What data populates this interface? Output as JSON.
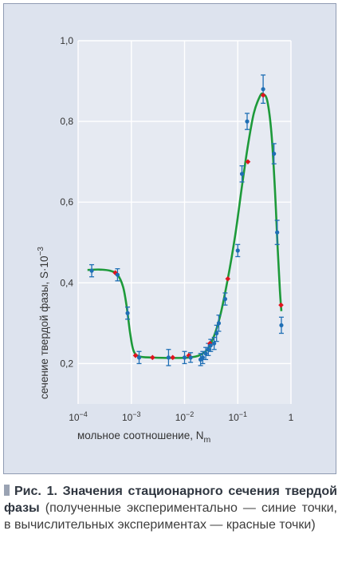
{
  "chart_data": {
    "type": "scatter",
    "xscale": "log",
    "xlim": [
      0.0001,
      1
    ],
    "ylim": [
      0.1,
      1.0
    ],
    "x_ticks": [
      {
        "value": 0.0001,
        "base": "10",
        "exp": "−4"
      },
      {
        "value": 0.001,
        "base": "10",
        "exp": "−3"
      },
      {
        "value": 0.01,
        "base": "10",
        "exp": "−2"
      },
      {
        "value": 0.1,
        "base": "10",
        "exp": "−1"
      },
      {
        "value": 1,
        "base": "1",
        "exp": ""
      }
    ],
    "y_ticks": [
      {
        "value": 0.2,
        "label": "0,2"
      },
      {
        "value": 0.4,
        "label": "0,4"
      },
      {
        "value": 0.6,
        "label": "0,6"
      },
      {
        "value": 0.8,
        "label": "0,8"
      },
      {
        "value": 1.0,
        "label": "1,0"
      }
    ],
    "xlabel": {
      "main": "мольное соотношение, N",
      "sub": "m"
    },
    "ylabel": {
      "main": "сечение твердой фазы, S·10",
      "sup": "−3"
    },
    "grid": true,
    "colors": {
      "experiment": "#1f6fb5",
      "computed": "#e0141e",
      "curve": "#1d9a3a",
      "grid": "#ffffff",
      "plot_bg": "#e6eaf2"
    },
    "series": [
      {
        "key": "experiment",
        "values": [
          {
            "x": 0.00018,
            "y": 0.43,
            "err": 0.015
          },
          {
            "x": 0.00055,
            "y": 0.42,
            "err": 0.015
          },
          {
            "x": 0.00085,
            "y": 0.325,
            "err": 0.015
          },
          {
            "x": 0.0014,
            "y": 0.215,
            "err": 0.015
          },
          {
            "x": 0.005,
            "y": 0.215,
            "err": 0.02
          },
          {
            "x": 0.01,
            "y": 0.215,
            "err": 0.015
          },
          {
            "x": 0.013,
            "y": 0.215,
            "err": 0.012
          },
          {
            "x": 0.02,
            "y": 0.21,
            "err": 0.015
          },
          {
            "x": 0.022,
            "y": 0.215,
            "err": 0.015
          },
          {
            "x": 0.025,
            "y": 0.225,
            "err": 0.015
          },
          {
            "x": 0.028,
            "y": 0.235,
            "err": 0.015
          },
          {
            "x": 0.031,
            "y": 0.245,
            "err": 0.015
          },
          {
            "x": 0.036,
            "y": 0.25,
            "err": 0.015
          },
          {
            "x": 0.04,
            "y": 0.275,
            "err": 0.02
          },
          {
            "x": 0.044,
            "y": 0.3,
            "err": 0.02
          },
          {
            "x": 0.058,
            "y": 0.36,
            "err": 0.015
          },
          {
            "x": 0.1,
            "y": 0.48,
            "err": 0.015
          },
          {
            "x": 0.12,
            "y": 0.67,
            "err": 0.02
          },
          {
            "x": 0.15,
            "y": 0.8,
            "err": 0.02
          },
          {
            "x": 0.3,
            "y": 0.88,
            "err": 0.035
          },
          {
            "x": 0.48,
            "y": 0.72,
            "err": 0.025
          },
          {
            "x": 0.55,
            "y": 0.525,
            "err": 0.03
          },
          {
            "x": 0.66,
            "y": 0.295,
            "err": 0.02
          }
        ]
      },
      {
        "key": "computed",
        "values": [
          {
            "x": 0.0005,
            "y": 0.425
          },
          {
            "x": 0.0012,
            "y": 0.22
          },
          {
            "x": 0.0025,
            "y": 0.215
          },
          {
            "x": 0.006,
            "y": 0.215
          },
          {
            "x": 0.012,
            "y": 0.22
          },
          {
            "x": 0.03,
            "y": 0.25
          },
          {
            "x": 0.065,
            "y": 0.41
          },
          {
            "x": 0.155,
            "y": 0.7
          },
          {
            "x": 0.3,
            "y": 0.865
          },
          {
            "x": 0.65,
            "y": 0.345
          }
        ]
      },
      {
        "key": "curve",
        "values": [
          {
            "x": 0.00015,
            "y": 0.432
          },
          {
            "x": 0.00025,
            "y": 0.433
          },
          {
            "x": 0.0004,
            "y": 0.43
          },
          {
            "x": 0.00055,
            "y": 0.42
          },
          {
            "x": 0.0007,
            "y": 0.39
          },
          {
            "x": 0.00082,
            "y": 0.34
          },
          {
            "x": 0.00095,
            "y": 0.275
          },
          {
            "x": 0.0011,
            "y": 0.232
          },
          {
            "x": 0.0014,
            "y": 0.218
          },
          {
            "x": 0.0025,
            "y": 0.215
          },
          {
            "x": 0.006,
            "y": 0.214
          },
          {
            "x": 0.012,
            "y": 0.215
          },
          {
            "x": 0.02,
            "y": 0.222
          },
          {
            "x": 0.03,
            "y": 0.245
          },
          {
            "x": 0.045,
            "y": 0.31
          },
          {
            "x": 0.065,
            "y": 0.41
          },
          {
            "x": 0.09,
            "y": 0.52
          },
          {
            "x": 0.12,
            "y": 0.64
          },
          {
            "x": 0.155,
            "y": 0.74
          },
          {
            "x": 0.2,
            "y": 0.82
          },
          {
            "x": 0.26,
            "y": 0.862
          },
          {
            "x": 0.3,
            "y": 0.868
          },
          {
            "x": 0.36,
            "y": 0.85
          },
          {
            "x": 0.43,
            "y": 0.77
          },
          {
            "x": 0.5,
            "y": 0.63
          },
          {
            "x": 0.56,
            "y": 0.49
          },
          {
            "x": 0.62,
            "y": 0.38
          },
          {
            "x": 0.66,
            "y": 0.33
          }
        ]
      }
    ]
  },
  "caption": {
    "title": "Рис. 1. Значения стационарного сечения твердой фазы",
    "text": " (полученные экспериментально — синие точки, в вычислительных экспериментах — красные точки)"
  }
}
